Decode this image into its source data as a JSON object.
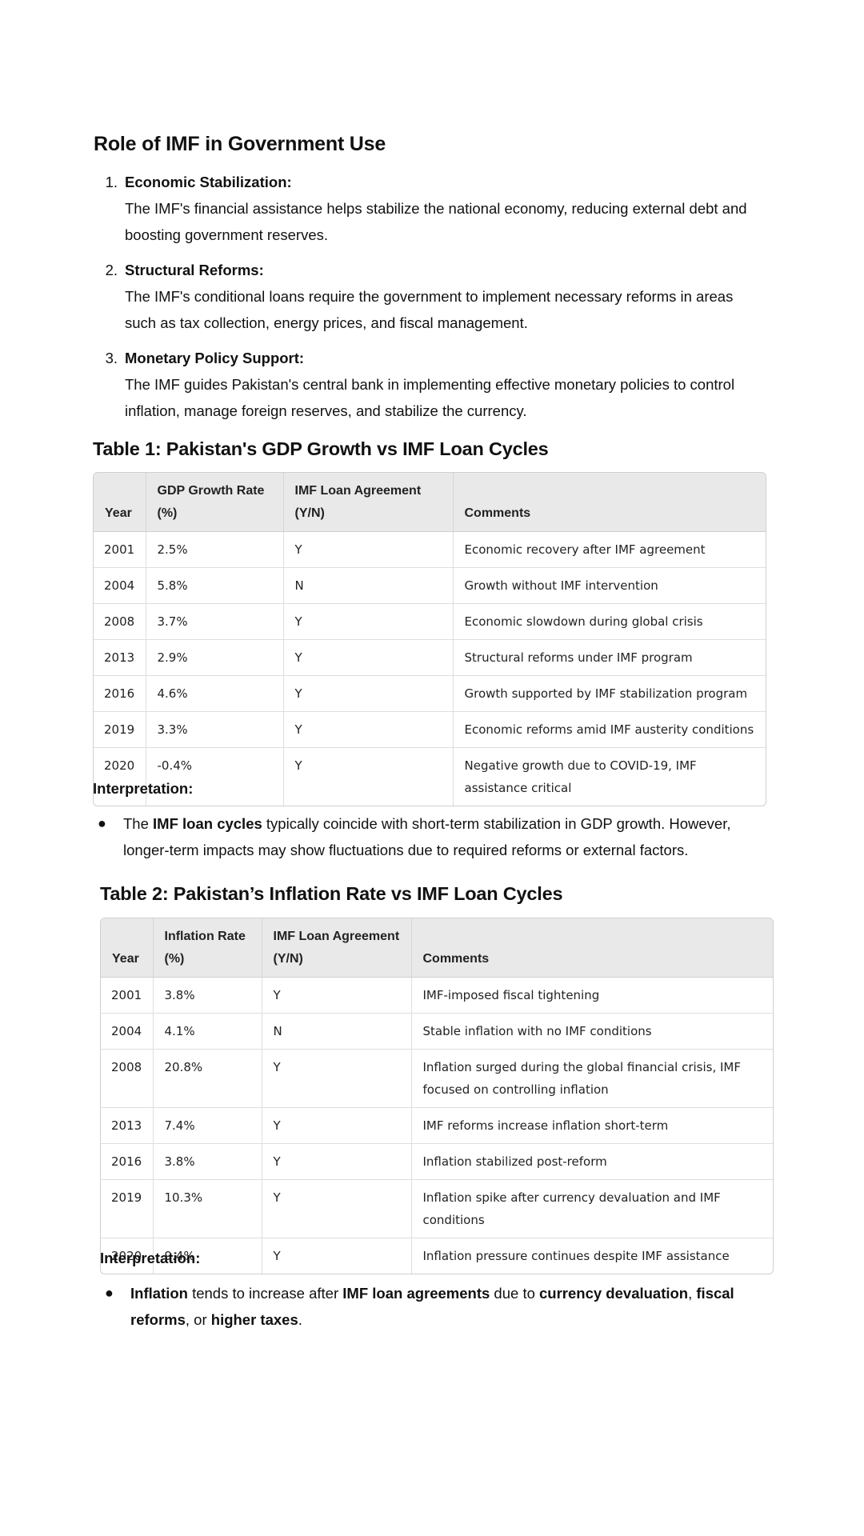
{
  "section": {
    "title": "Role of IMF in Government Use",
    "items": [
      {
        "number": "1.",
        "heading": "Economic Stabilization:",
        "body": "The IMF's financial assistance helps stabilize the national economy, reducing external debt and boosting government reserves."
      },
      {
        "number": "2.",
        "heading": "Structural Reforms:",
        "body": "The IMF's conditional loans require the government to implement necessary reforms in areas such as tax collection, energy prices, and fiscal management."
      },
      {
        "number": "3.",
        "heading": "Monetary Policy Support:",
        "body": "The IMF guides Pakistan's central bank in implementing effective monetary policies to control inflation, manage foreign reserves, and stabilize the currency."
      }
    ]
  },
  "table1": {
    "title": "Table 1: Pakistan's GDP Growth vs IMF Loan Cycles",
    "headers": [
      "Year",
      "GDP Growth Rate (%)",
      "IMF Loan Agreement (Y/N)",
      "Comments"
    ],
    "rows": [
      [
        "2001",
        "2.5%",
        "Y",
        "Economic recovery after IMF agreement"
      ],
      [
        "2004",
        "5.8%",
        "N",
        "Growth without IMF intervention"
      ],
      [
        "2008",
        "3.7%",
        "Y",
        "Economic slowdown during global crisis"
      ],
      [
        "2013",
        "2.9%",
        "Y",
        "Structural reforms under IMF program"
      ],
      [
        "2016",
        "4.6%",
        "Y",
        "Growth supported by IMF stabilization program"
      ],
      [
        "2019",
        "3.3%",
        "Y",
        "Economic reforms amid IMF austerity conditions"
      ],
      [
        "2020",
        "-0.4%",
        "Y",
        "Negative growth due to COVID-19, IMF assistance critical"
      ]
    ]
  },
  "interp1": {
    "label": "Interpretation:",
    "bullet": {
      "pre": "The ",
      "bold1": "IMF loan cycles",
      "post": " typically coincide with short-term stabilization in GDP growth. However, longer-term impacts may show fluctuations due to required reforms or external factors."
    }
  },
  "table2": {
    "title": "Table 2: Pakistan’s Inflation Rate vs IMF Loan Cycles",
    "headers": [
      "Year",
      "Inflation Rate (%)",
      "IMF Loan Agreement (Y/N)",
      "Comments"
    ],
    "rows": [
      [
        "2001",
        "3.8%",
        "Y",
        "IMF-imposed fiscal tightening"
      ],
      [
        "2004",
        "4.1%",
        "N",
        "Stable inflation with no IMF conditions"
      ],
      [
        "2008",
        "20.8%",
        "Y",
        "Inflation surged during the global financial crisis, IMF focused on controlling inflation"
      ],
      [
        "2013",
        "7.4%",
        "Y",
        "IMF reforms increase inflation short-term"
      ],
      [
        "2016",
        "3.8%",
        "Y",
        "Inflation stabilized post-reform"
      ],
      [
        "2019",
        "10.3%",
        "Y",
        "Inflation spike after currency devaluation and IMF conditions"
      ],
      [
        "2020",
        "9.4%",
        "Y",
        "Inflation pressure continues despite IMF assistance"
      ]
    ]
  },
  "interp2": {
    "label": "Interpretation:",
    "bullet": {
      "b1": "Inflation",
      "t1": " tends to increase after ",
      "b2": "IMF loan agreements",
      "t2": " due to ",
      "b3": "currency devaluation",
      "t3": ", ",
      "b4": "fiscal reforms",
      "t4": ", or ",
      "b5": "higher taxes",
      "t5": "."
    }
  }
}
